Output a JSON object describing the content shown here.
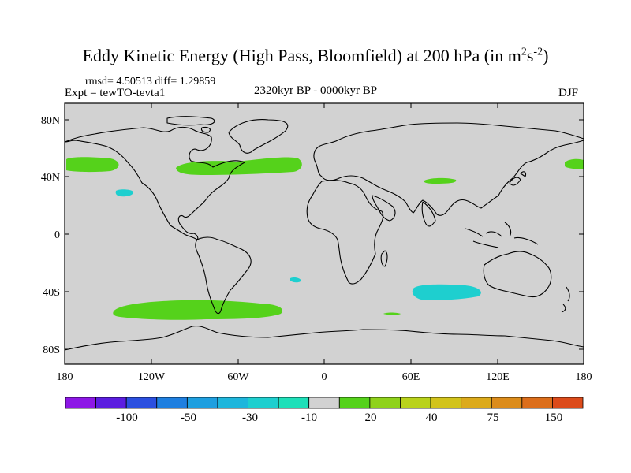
{
  "title": {
    "main": "Eddy Kinetic Energy (High Pass, Bloomfield) at 200 hPa (in m",
    "sup1": "2",
    "s": "s",
    "sup2": "-2",
    "close": ")"
  },
  "stats": "rmsd= 4.50513 diff= 1.29859",
  "expt": "Expt = tewTO-tevta1",
  "period": "2320kyr BP - 0000kyr BP",
  "season": "DJF",
  "axes": {
    "lat_ticks": [
      "80N",
      "40N",
      "0",
      "40S",
      "80S"
    ],
    "lon_ticks": [
      "180",
      "120W",
      "60W",
      "0",
      "60E",
      "120E",
      "180"
    ]
  },
  "colorbar": {
    "colors": [
      "#8d17e6",
      "#5b1de0",
      "#2b4fe0",
      "#1e7fe0",
      "#1e9fe0",
      "#1eb6dc",
      "#1ecfcf",
      "#1ee0b9",
      "#d2d2d2",
      "#55d21b",
      "#8fd21b",
      "#b9d21b",
      "#d2c31b",
      "#dcaa1b",
      "#dc8c1b",
      "#dc6e1b",
      "#dc4b1b"
    ],
    "labels": [
      "-100",
      "-50",
      "-30",
      "-10",
      "20",
      "40",
      "75",
      "150"
    ]
  },
  "map": {
    "ocean_land_fill": "#d2d2d2",
    "positive_fill": "#55d21b",
    "negative_fill": "#1ecfcf"
  }
}
